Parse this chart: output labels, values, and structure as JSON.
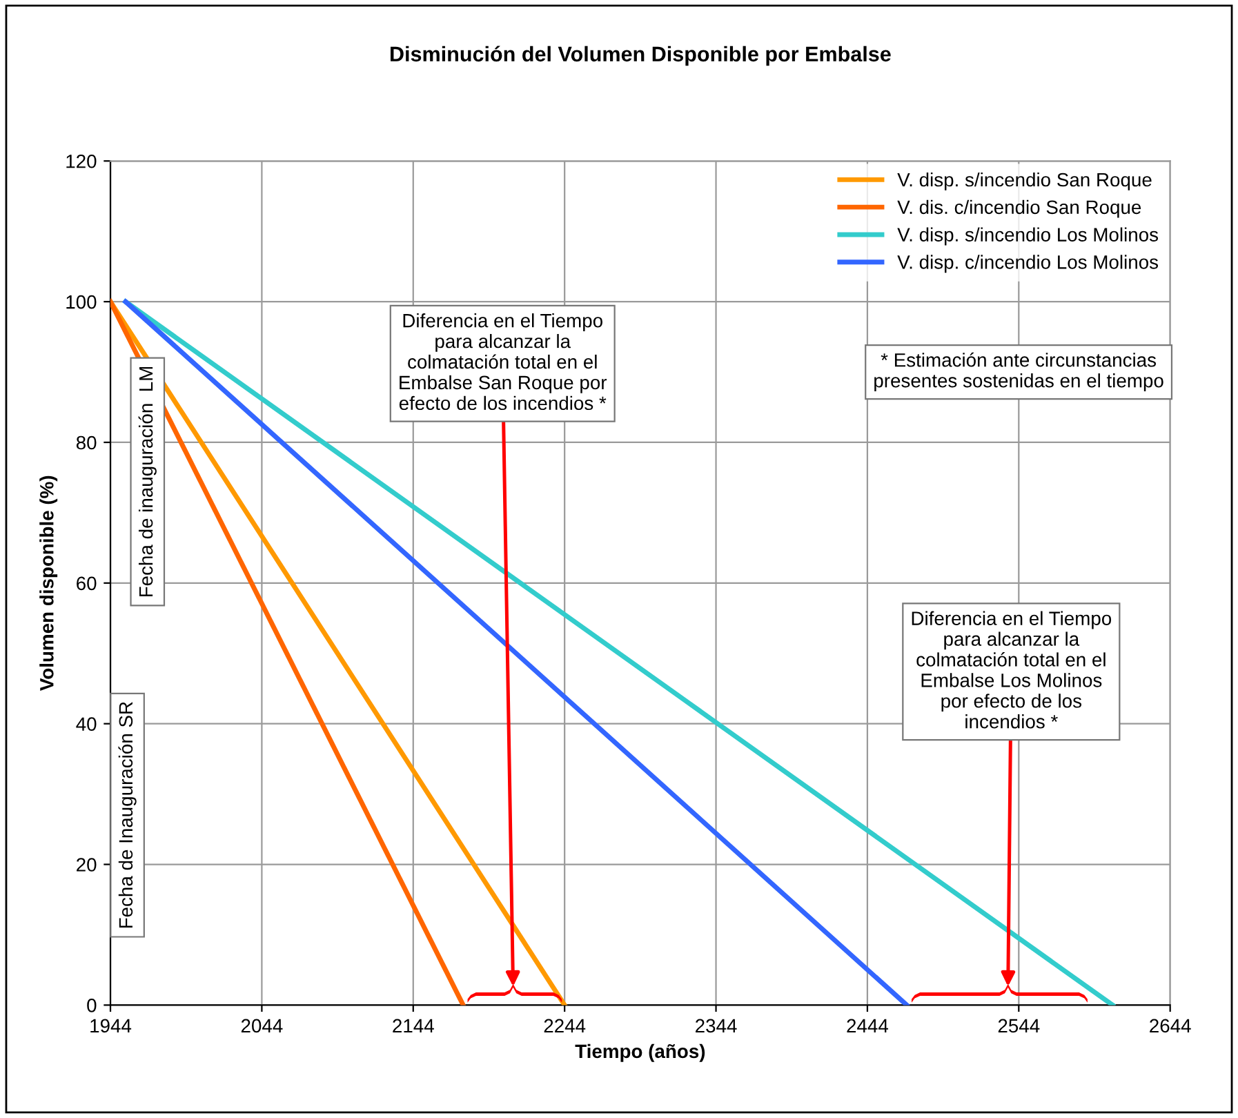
{
  "chart_data": {
    "type": "line",
    "title": "Disminución del Volumen Disponible por Embalse",
    "xlabel": "Tiempo (años)",
    "ylabel": "Volumen disponible (%)",
    "xlim": [
      1944,
      2644
    ],
    "xticks": [
      1944,
      2044,
      2144,
      2244,
      2344,
      2444,
      2544,
      2644
    ],
    "ylim": [
      0,
      120
    ],
    "yticks": [
      0,
      20,
      40,
      60,
      80,
      100,
      120
    ],
    "grid": true,
    "legend": "top right",
    "marker": "none",
    "line_style": "solid",
    "series": [
      {
        "name": "V. disp. s/incendio San Roque",
        "color": "#ff9900",
        "x": [
          1944,
          2244
        ],
        "values": [
          100,
          0
        ]
      },
      {
        "name": "V. dis. c/incendio San Roque",
        "color": "#ff6600",
        "x": [
          1944,
          2177
        ],
        "values": [
          100,
          0
        ]
      },
      {
        "name": "V. disp. s/incendio Los Molinos",
        "color": "#33cccc",
        "x": [
          1954,
          2606
        ],
        "values": [
          100,
          0
        ]
      },
      {
        "name": "V. disp. c/incendio Los Molinos",
        "color": "#3366ff",
        "x": [
          1954,
          2470
        ],
        "values": [
          100,
          0
        ]
      }
    ],
    "annotations": [
      "Diferencia en el Tiempo\npara alcanzar la\ncolmatación total en el\nEmbalse San Roque por\nefecto de los incendios *",
      "Diferencia en el Tiempo\npara alcanzar la\ncolmatación total en el\nEmbalse Los Molinos\npor efecto de los\nincendios *",
      "* Estimación ante circunstancias\npresentes sostenidas en el tiempo",
      "Fecha de inauguración  LM",
      "Fecha de Inauguración SR"
    ]
  }
}
